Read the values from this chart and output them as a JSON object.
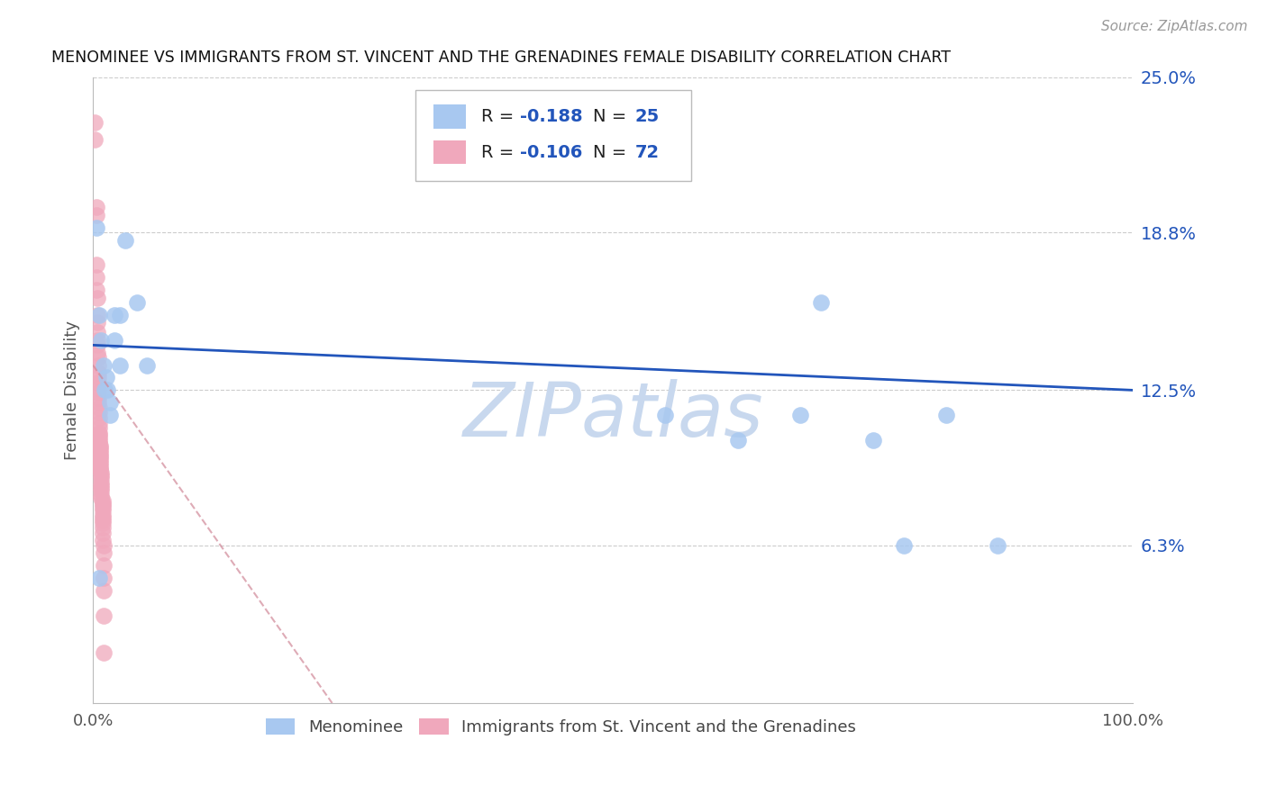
{
  "title": "MENOMINEE VS IMMIGRANTS FROM ST. VINCENT AND THE GRENADINES FEMALE DISABILITY CORRELATION CHART",
  "source": "Source: ZipAtlas.com",
  "ylabel": "Female Disability",
  "xlim": [
    0,
    1.0
  ],
  "ylim": [
    0,
    0.25
  ],
  "background_color": "#ffffff",
  "grid_color": "#cccccc",
  "menominee_color": "#a8c8f0",
  "immigrants_color": "#f0a8bc",
  "line_blue_color": "#2255bb",
  "line_pink_color": "#d08898",
  "menominee_x": [
    0.003,
    0.006,
    0.008,
    0.01,
    0.011,
    0.013,
    0.014,
    0.016,
    0.016,
    0.021,
    0.021,
    0.026,
    0.026,
    0.031,
    0.042,
    0.052,
    0.55,
    0.62,
    0.68,
    0.7,
    0.75,
    0.78,
    0.82,
    0.87,
    0.006
  ],
  "menominee_y": [
    0.19,
    0.155,
    0.145,
    0.135,
    0.125,
    0.13,
    0.125,
    0.12,
    0.115,
    0.155,
    0.145,
    0.155,
    0.135,
    0.185,
    0.16,
    0.135,
    0.115,
    0.105,
    0.115,
    0.16,
    0.105,
    0.063,
    0.115,
    0.063,
    0.05
  ],
  "immigrants_x": [
    0.002,
    0.002,
    0.003,
    0.003,
    0.003,
    0.003,
    0.003,
    0.004,
    0.004,
    0.004,
    0.004,
    0.004,
    0.004,
    0.004,
    0.005,
    0.005,
    0.005,
    0.005,
    0.005,
    0.005,
    0.005,
    0.005,
    0.005,
    0.006,
    0.006,
    0.006,
    0.006,
    0.006,
    0.006,
    0.006,
    0.006,
    0.006,
    0.006,
    0.007,
    0.007,
    0.007,
    0.007,
    0.007,
    0.007,
    0.007,
    0.007,
    0.007,
    0.007,
    0.007,
    0.008,
    0.008,
    0.008,
    0.008,
    0.008,
    0.008,
    0.008,
    0.008,
    0.008,
    0.009,
    0.009,
    0.009,
    0.009,
    0.009,
    0.009,
    0.009,
    0.009,
    0.009,
    0.009,
    0.009,
    0.009,
    0.01,
    0.01,
    0.01,
    0.01,
    0.01,
    0.01,
    0.01
  ],
  "immigrants_y": [
    0.232,
    0.225,
    0.198,
    0.195,
    0.175,
    0.17,
    0.165,
    0.162,
    0.155,
    0.152,
    0.148,
    0.145,
    0.143,
    0.14,
    0.138,
    0.135,
    0.132,
    0.13,
    0.128,
    0.126,
    0.124,
    0.122,
    0.12,
    0.118,
    0.116,
    0.114,
    0.112,
    0.11,
    0.108,
    0.107,
    0.106,
    0.105,
    0.104,
    0.103,
    0.102,
    0.101,
    0.1,
    0.099,
    0.098,
    0.097,
    0.096,
    0.095,
    0.094,
    0.093,
    0.092,
    0.091,
    0.09,
    0.088,
    0.087,
    0.086,
    0.085,
    0.083,
    0.082,
    0.081,
    0.08,
    0.079,
    0.078,
    0.077,
    0.075,
    0.074,
    0.073,
    0.072,
    0.07,
    0.068,
    0.065,
    0.063,
    0.06,
    0.055,
    0.05,
    0.045,
    0.035,
    0.02
  ],
  "blue_line_x": [
    0.0,
    1.0
  ],
  "blue_line_y": [
    0.143,
    0.125
  ],
  "pink_line_x": [
    0.0,
    0.23
  ],
  "pink_line_y": [
    0.135,
    0.0
  ],
  "watermark": "ZIPatlas",
  "watermark_color": "#c8d8ee",
  "ytick_vals": [
    0.063,
    0.125,
    0.188,
    0.25
  ],
  "ytick_labels": [
    "6.3%",
    "12.5%",
    "18.8%",
    "25.0%"
  ],
  "legend_text_color": "#222222",
  "legend_value_color": "#2255bb",
  "legend_R1": "-0.188",
  "legend_N1": "25",
  "legend_R2": "-0.106",
  "legend_N2": "72"
}
